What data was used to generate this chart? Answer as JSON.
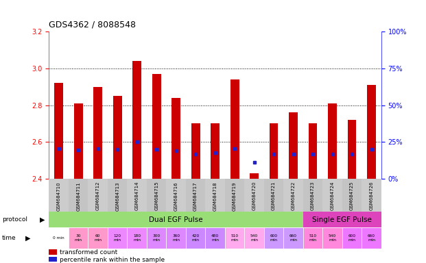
{
  "title": "GDS4362 / 8088548",
  "samples": [
    "GSM684710",
    "GSM684711",
    "GSM684712",
    "GSM684713",
    "GSM684714",
    "GSM684715",
    "GSM684716",
    "GSM684717",
    "GSM684718",
    "GSM684719",
    "GSM684720",
    "GSM684721",
    "GSM684722",
    "GSM684723",
    "GSM684724",
    "GSM684725",
    "GSM684726"
  ],
  "bar_values": [
    2.92,
    2.81,
    2.9,
    2.85,
    3.04,
    2.97,
    2.84,
    2.7,
    2.7,
    2.94,
    2.43,
    2.7,
    2.76,
    2.7,
    2.81,
    2.72,
    2.91
  ],
  "blue_values": [
    2.565,
    2.555,
    2.565,
    2.56,
    2.6,
    2.56,
    2.553,
    2.535,
    2.54,
    2.565,
    2.49,
    2.535,
    2.535,
    2.535,
    2.535,
    2.535,
    2.56
  ],
  "bar_bottom": 2.4,
  "ylim": [
    2.4,
    3.2
  ],
  "y_ticks_left": [
    2.4,
    2.6,
    2.8,
    3.0,
    3.2
  ],
  "y_ticks_right": [
    0,
    25,
    50,
    75,
    100
  ],
  "y_right_labels": [
    "0%",
    "25%",
    "50%",
    "75%",
    "100%"
  ],
  "grid_values": [
    3.0,
    2.8,
    2.6
  ],
  "bar_color": "#cc0000",
  "blue_color": "#2222cc",
  "protocol_dual": "Dual EGF Pulse",
  "protocol_single": "Single EGF Pulse",
  "protocol_dual_color": "#99dd77",
  "protocol_single_color": "#dd44bb",
  "time_labels": [
    "0 min",
    "30\nmin",
    "60\nmin",
    "120\nmin",
    "180\nmin",
    "300\nmin",
    "360\nmin",
    "420\nmin",
    "480\nmin",
    "510\nmin",
    "540\nmin",
    "600\nmin",
    "660\nmin",
    "510\nmin",
    "540\nmin",
    "600\nmin",
    "660\nmin"
  ],
  "time_cell_colors": [
    "#ffffff",
    "#ff99cc",
    "#ff99cc",
    "#ee88ff",
    "#ee88ff",
    "#dd88ff",
    "#dd88ff",
    "#cc88ff",
    "#cc88ff",
    "#ffaaee",
    "#ffaaee",
    "#cc99ff",
    "#cc99ff",
    "#ff88dd",
    "#ff88dd",
    "#ee77ff",
    "#ee77ff"
  ],
  "legend_bar_label": "transformed count",
  "legend_blue_label": "percentile rank within the sample",
  "n_dual": 13,
  "n_single": 4,
  "sample_label_bg": "#cccccc"
}
